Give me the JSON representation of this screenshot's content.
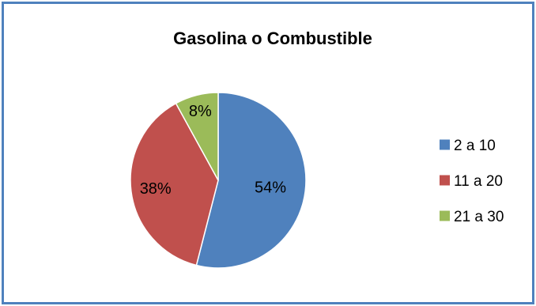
{
  "chart_data": {
    "type": "pie",
    "title": "Gasolina o Combustible",
    "categories": [
      "2 a 10",
      "11 a 20",
      "21 a 30"
    ],
    "values": [
      54,
      38,
      8
    ],
    "data_labels": [
      "54%",
      "38%",
      "8%"
    ],
    "colors": [
      "#4F81BD",
      "#C0504D",
      "#9BBB59"
    ],
    "legend": "right",
    "border_color": "#4F81BD"
  }
}
